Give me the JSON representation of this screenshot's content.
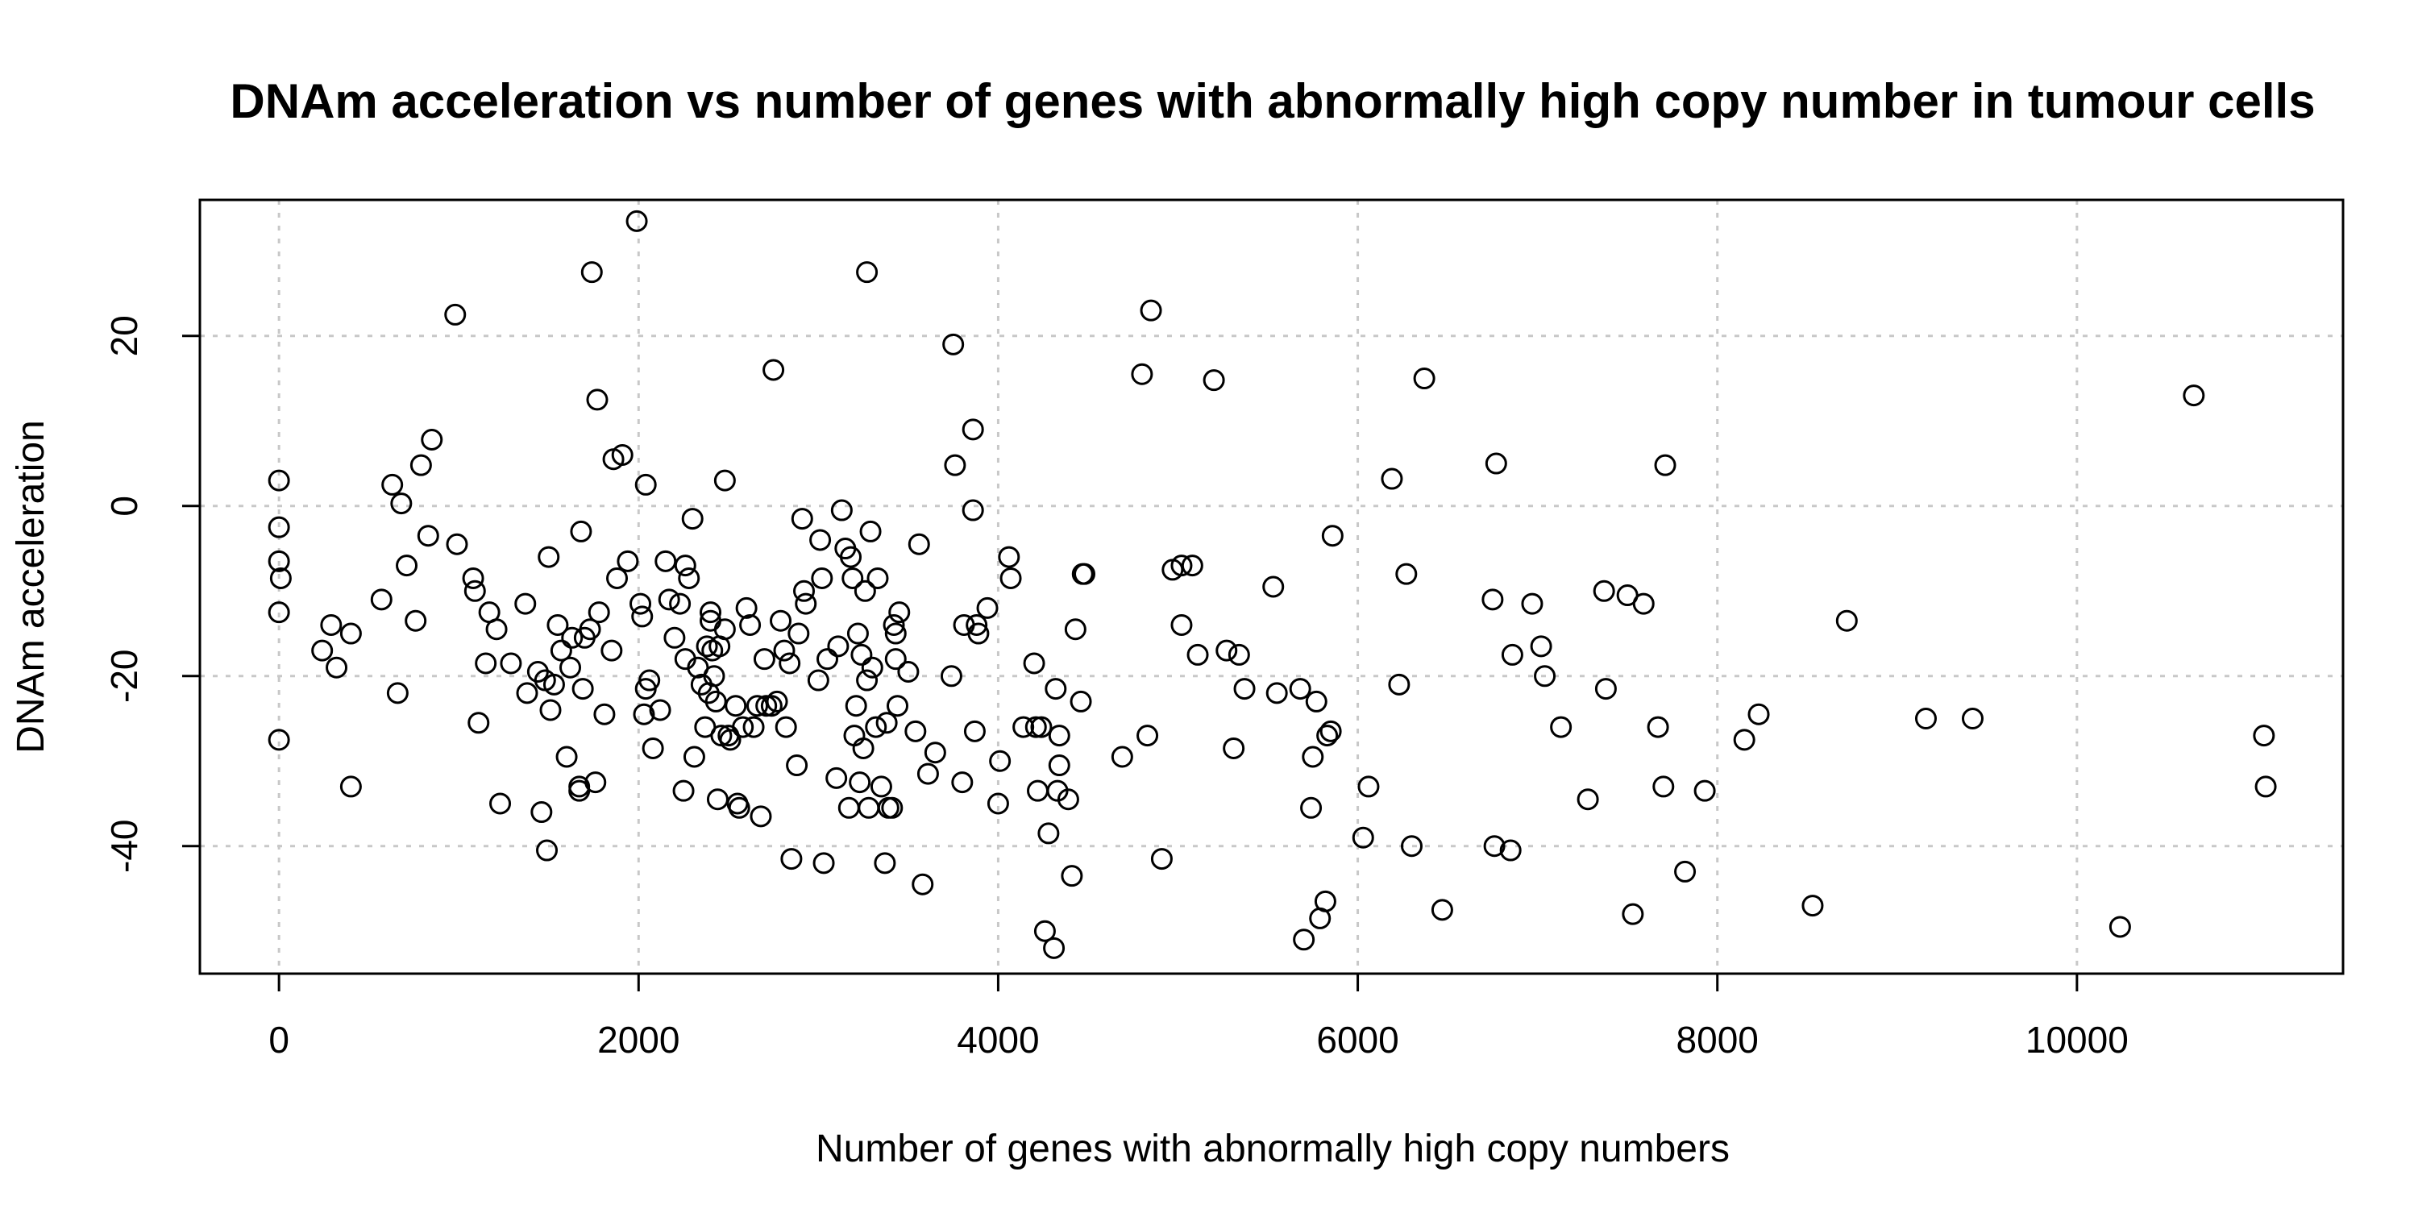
{
  "chart_data": {
    "type": "scatter",
    "title": "DNAm acceleration vs number of genes with abnormally high copy number in tumour cells",
    "xlabel": "Number of genes with abnormally high copy numbers",
    "ylabel": "DNAm acceleration",
    "xlim": [
      -440,
      11480
    ],
    "ylim": [
      -55,
      36
    ],
    "x_ticks": [
      0,
      2000,
      4000,
      6000,
      8000,
      10000
    ],
    "x_tick_labels": [
      "0",
      "2000",
      "4000",
      "6000",
      "8000",
      "10000"
    ],
    "y_ticks": [
      -40,
      -20,
      0,
      20
    ],
    "y_tick_labels": [
      "-40",
      "-20",
      "0",
      "20"
    ],
    "grid": true,
    "grid_style": "dotted",
    "marker": "open-circle",
    "legend": "none",
    "points": [
      [
        0,
        3
      ],
      [
        0,
        -2.5
      ],
      [
        0,
        -6.5
      ],
      [
        10,
        -8.5
      ],
      [
        0,
        -12.5
      ],
      [
        0,
        -27.5
      ],
      [
        240,
        -17
      ],
      [
        290,
        -14
      ],
      [
        320,
        -19
      ],
      [
        400,
        -15
      ],
      [
        400,
        -33
      ],
      [
        570,
        -11
      ],
      [
        630,
        2.5
      ],
      [
        660,
        -22
      ],
      [
        680,
        0.3
      ],
      [
        710,
        -7
      ],
      [
        760,
        -13.5
      ],
      [
        790,
        4.8
      ],
      [
        830,
        -3.5
      ],
      [
        850,
        7.8
      ],
      [
        980,
        22.5
      ],
      [
        990,
        -4.5
      ],
      [
        1080,
        -8.5
      ],
      [
        1090,
        -10
      ],
      [
        1110,
        -25.5
      ],
      [
        1150,
        -18.5
      ],
      [
        1170,
        -12.5
      ],
      [
        1210,
        -14.5
      ],
      [
        1230,
        -35
      ],
      [
        1290,
        -18.5
      ],
      [
        1370,
        -11.5
      ],
      [
        1380,
        -22
      ],
      [
        1440,
        -19.5
      ],
      [
        1460,
        -36
      ],
      [
        1480,
        -20.5
      ],
      [
        1490,
        -40.5
      ],
      [
        1500,
        -6
      ],
      [
        1510,
        -24
      ],
      [
        1530,
        -21
      ],
      [
        1550,
        -14
      ],
      [
        1570,
        -17
      ],
      [
        1600,
        -29.5
      ],
      [
        1620,
        -19
      ],
      [
        1630,
        -15.5
      ],
      [
        1670,
        -33.5
      ],
      [
        1670,
        -33
      ],
      [
        1680,
        -3
      ],
      [
        1690,
        -21.5
      ],
      [
        1700,
        -15.5
      ],
      [
        1730,
        -14.5
      ],
      [
        1740,
        27.5
      ],
      [
        1760,
        -32.5
      ],
      [
        1770,
        12.5
      ],
      [
        1780,
        -12.5
      ],
      [
        1810,
        -24.5
      ],
      [
        1850,
        -17
      ],
      [
        1860,
        5.5
      ],
      [
        1880,
        -8.5
      ],
      [
        1910,
        6
      ],
      [
        1940,
        -6.5
      ],
      [
        1990,
        33.5
      ],
      [
        2010,
        -11.5
      ],
      [
        2020,
        -13
      ],
      [
        2030,
        -24.5
      ],
      [
        2040,
        -21.5
      ],
      [
        2040,
        2.5
      ],
      [
        2060,
        -20.5
      ],
      [
        2080,
        -28.5
      ],
      [
        2120,
        -24
      ],
      [
        2150,
        -6.5
      ],
      [
        2170,
        -11
      ],
      [
        2200,
        -15.5
      ],
      [
        2230,
        -11.5
      ],
      [
        2250,
        -33.5
      ],
      [
        2260,
        -18
      ],
      [
        2260,
        -7
      ],
      [
        2280,
        -8.5
      ],
      [
        2300,
        -1.5
      ],
      [
        2310,
        -29.5
      ],
      [
        2330,
        -19
      ],
      [
        2350,
        -21
      ],
      [
        2370,
        -26
      ],
      [
        2380,
        -16.5
      ],
      [
        2390,
        -22
      ],
      [
        2400,
        -13.5
      ],
      [
        2400,
        -12.5
      ],
      [
        2410,
        -17
      ],
      [
        2420,
        -20
      ],
      [
        2430,
        -23
      ],
      [
        2440,
        -34.5
      ],
      [
        2450,
        -16.5
      ],
      [
        2460,
        -27
      ],
      [
        2480,
        -14.5
      ],
      [
        2480,
        3
      ],
      [
        2500,
        -27
      ],
      [
        2510,
        -27.5
      ],
      [
        2540,
        -23.5
      ],
      [
        2550,
        -35
      ],
      [
        2560,
        -35.5
      ],
      [
        2580,
        -26
      ],
      [
        2600,
        -12
      ],
      [
        2620,
        -14
      ],
      [
        2640,
        -26
      ],
      [
        2660,
        -23.5
      ],
      [
        2680,
        -36.5
      ],
      [
        2700,
        -18
      ],
      [
        2710,
        -23.5
      ],
      [
        2740,
        -23.5
      ],
      [
        2750,
        16
      ],
      [
        2770,
        -23
      ],
      [
        2790,
        -13.5
      ],
      [
        2810,
        -17
      ],
      [
        2820,
        -26
      ],
      [
        2840,
        -18.5
      ],
      [
        2850,
        -41.5
      ],
      [
        2880,
        -30.5
      ],
      [
        2890,
        -15
      ],
      [
        2910,
        -1.5
      ],
      [
        2920,
        -10
      ],
      [
        2930,
        -11.5
      ],
      [
        3000,
        -20.5
      ],
      [
        3010,
        -4
      ],
      [
        3020,
        -8.5
      ],
      [
        3030,
        -42
      ],
      [
        3050,
        -18
      ],
      [
        3100,
        -32
      ],
      [
        3110,
        -16.5
      ],
      [
        3130,
        -0.5
      ],
      [
        3150,
        -5
      ],
      [
        3170,
        -35.5
      ],
      [
        3180,
        -6
      ],
      [
        3190,
        -8.5
      ],
      [
        3200,
        -27
      ],
      [
        3210,
        -23.5
      ],
      [
        3220,
        -15
      ],
      [
        3230,
        -32.5
      ],
      [
        3240,
        -17.5
      ],
      [
        3250,
        -28.5
      ],
      [
        3260,
        -10
      ],
      [
        3270,
        -20.5
      ],
      [
        3270,
        27.5
      ],
      [
        3280,
        -35.5
      ],
      [
        3290,
        -3
      ],
      [
        3300,
        -19
      ],
      [
        3320,
        -26
      ],
      [
        3330,
        -8.5
      ],
      [
        3350,
        -33
      ],
      [
        3370,
        -42
      ],
      [
        3380,
        -25.5
      ],
      [
        3390,
        -35.5
      ],
      [
        3410,
        -35.5
      ],
      [
        3420,
        -14
      ],
      [
        3430,
        -15
      ],
      [
        3430,
        -18
      ],
      [
        3440,
        -23.5
      ],
      [
        3450,
        -12.5
      ],
      [
        3500,
        -19.5
      ],
      [
        3540,
        -26.5
      ],
      [
        3560,
        -4.5
      ],
      [
        3580,
        -44.5
      ],
      [
        3610,
        -31.5
      ],
      [
        3650,
        -29
      ],
      [
        3740,
        -20
      ],
      [
        3750,
        19
      ],
      [
        3760,
        4.8
      ],
      [
        3800,
        -32.5
      ],
      [
        3810,
        -14
      ],
      [
        3860,
        9
      ],
      [
        3860,
        -0.5
      ],
      [
        3870,
        -26.5
      ],
      [
        3880,
        -14
      ],
      [
        3890,
        -15
      ],
      [
        3940,
        -12
      ],
      [
        4000,
        -35
      ],
      [
        4010,
        -30
      ],
      [
        4060,
        -6
      ],
      [
        4070,
        -8.5
      ],
      [
        4140,
        -26
      ],
      [
        4200,
        -18.5
      ],
      [
        4210,
        -26
      ],
      [
        4220,
        -33.5
      ],
      [
        4240,
        -26
      ],
      [
        4260,
        -50
      ],
      [
        4280,
        -38.5
      ],
      [
        4310,
        -52
      ],
      [
        4320,
        -21.5
      ],
      [
        4330,
        -33.5
      ],
      [
        4340,
        -30.5
      ],
      [
        4340,
        -27
      ],
      [
        4390,
        -34.5
      ],
      [
        4410,
        -43.5
      ],
      [
        4430,
        -14.5
      ],
      [
        4460,
        -23
      ],
      [
        4470,
        -8
      ],
      [
        4480,
        -8
      ],
      [
        4690,
        -29.5
      ],
      [
        4800,
        15.5
      ],
      [
        4830,
        -27
      ],
      [
        4850,
        23
      ],
      [
        4910,
        -41.5
      ],
      [
        4970,
        -7.5
      ],
      [
        5020,
        -14
      ],
      [
        5020,
        -7
      ],
      [
        5080,
        -7
      ],
      [
        5110,
        -17.5
      ],
      [
        5200,
        14.8
      ],
      [
        5270,
        -17
      ],
      [
        5310,
        -28.5
      ],
      [
        5340,
        -17.5
      ],
      [
        5370,
        -21.5
      ],
      [
        5530,
        -9.5
      ],
      [
        5550,
        -22
      ],
      [
        5680,
        -21.5
      ],
      [
        5700,
        -51
      ],
      [
        5740,
        -35.5
      ],
      [
        5750,
        -29.5
      ],
      [
        5770,
        -23
      ],
      [
        5790,
        -48.5
      ],
      [
        5820,
        -46.5
      ],
      [
        5830,
        -27
      ],
      [
        5850,
        -26.5
      ],
      [
        5860,
        -3.5
      ],
      [
        6030,
        -39
      ],
      [
        6060,
        -33
      ],
      [
        6190,
        3.2
      ],
      [
        6230,
        -21
      ],
      [
        6270,
        -8
      ],
      [
        6300,
        -40
      ],
      [
        6370,
        15
      ],
      [
        6470,
        -47.5
      ],
      [
        6750,
        -11
      ],
      [
        6760,
        -40
      ],
      [
        6770,
        5
      ],
      [
        6850,
        -40.5
      ],
      [
        6860,
        -17.5
      ],
      [
        6970,
        -11.5
      ],
      [
        7020,
        -16.5
      ],
      [
        7040,
        -20
      ],
      [
        7130,
        -26
      ],
      [
        7280,
        -34.5
      ],
      [
        7370,
        -10
      ],
      [
        7380,
        -21.5
      ],
      [
        7500,
        -10.5
      ],
      [
        7530,
        -48
      ],
      [
        7590,
        -11.5
      ],
      [
        7670,
        -26
      ],
      [
        7700,
        -33
      ],
      [
        7710,
        4.8
      ],
      [
        7820,
        -43
      ],
      [
        7930,
        -33.5
      ],
      [
        8150,
        -27.5
      ],
      [
        8230,
        -24.5
      ],
      [
        8530,
        -47
      ],
      [
        8720,
        -13.5
      ],
      [
        9160,
        -25
      ],
      [
        9420,
        -25
      ],
      [
        10240,
        -49.5
      ],
      [
        10650,
        13
      ],
      [
        11040,
        -27
      ],
      [
        11050,
        -33
      ]
    ]
  }
}
